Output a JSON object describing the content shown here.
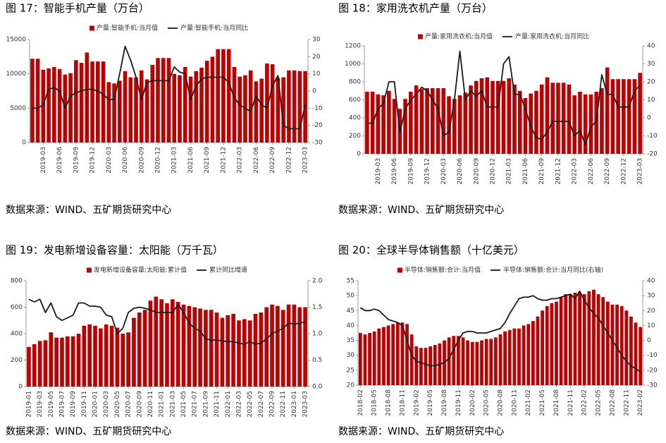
{
  "chart_data": [
    {
      "type": "combo",
      "title": "图 17：智能手机产量（万台）",
      "source": "数据来源：WIND、五矿期货研究中心",
      "categories": [
        null,
        null,
        "2019-03",
        null,
        null,
        "2019-06",
        null,
        null,
        "2019-09",
        null,
        null,
        "2019-12",
        null,
        null,
        "2020-03",
        null,
        null,
        "2020-06",
        null,
        null,
        "2020-09",
        null,
        null,
        "2020-12",
        null,
        null,
        "2021-03",
        null,
        null,
        "2021-06",
        null,
        null,
        "2021-09",
        null,
        null,
        "2021-12",
        null,
        null,
        "2022-03",
        null,
        null,
        "2022-06",
        null,
        null,
        "2022-09",
        null,
        null,
        "2022-12",
        null,
        null,
        "2023-03"
      ],
      "series": [
        {
          "name": "产量:智能手机:当月值",
          "type": "bar",
          "color": "#c00000",
          "values": [
            12200,
            12200,
            10600,
            10800,
            11000,
            10700,
            9900,
            10100,
            12000,
            11600,
            13100,
            11800,
            11800,
            11800,
            8800,
            8600,
            9000,
            10400,
            9500,
            9500,
            10500,
            9200,
            11300,
            12300,
            12300,
            12300,
            10000,
            9800,
            11000,
            9600,
            10400,
            10900,
            11900,
            12500,
            13600,
            13600,
            13600,
            11000,
            9600,
            9800,
            10500,
            8900,
            9300,
            11500,
            11400,
            9400,
            9500,
            10500,
            10500,
            10400,
            10400
          ]
        },
        {
          "name": "产量:智能手机:当月同比",
          "type": "line",
          "axis": "y2",
          "color": "#1a1a1a",
          "values": [
            -10,
            -10,
            -8,
            1,
            2,
            0,
            -10,
            -3,
            -1,
            0,
            1,
            1,
            0,
            -2,
            -5,
            -5,
            10,
            26,
            18,
            8,
            -5,
            5,
            6,
            6,
            6,
            6,
            14,
            11,
            10,
            -5,
            3,
            7,
            8,
            8,
            8,
            8,
            5,
            -4,
            -8,
            -10,
            -12,
            -3,
            -8,
            -10,
            3,
            9,
            -20,
            -22,
            -22,
            -22,
            -8
          ]
        }
      ],
      "ylim": [
        0,
        15000
      ],
      "yticks": [
        0,
        5000,
        10000,
        15000
      ],
      "y2lim": [
        -30,
        30
      ],
      "y2ticks": [
        -30,
        -20,
        -10,
        0,
        10,
        20,
        30
      ]
    },
    {
      "type": "combo",
      "title": "图 18：家用洗衣机产量（万台）",
      "source": "数据来源：WIND、五矿期货研究中心",
      "categories": [
        null,
        null,
        "2019-03",
        null,
        null,
        "2019-06",
        null,
        null,
        "2019-09",
        null,
        null,
        "2019-12",
        null,
        null,
        "2020-03",
        null,
        null,
        "2020-06",
        null,
        null,
        "2020-09",
        null,
        null,
        "2020-12",
        null,
        null,
        "2021-03",
        null,
        null,
        "2021-06",
        null,
        null,
        "2021-09",
        null,
        null,
        "2021-12",
        null,
        null,
        "2022-03",
        null,
        null,
        "2022-06",
        null,
        null,
        "2022-09",
        null,
        null,
        "2022-12",
        null,
        null,
        "2023-03"
      ],
      "series": [
        {
          "name": "产量:家用洗衣机:当月值",
          "type": "bar",
          "color": "#c00000",
          "values": [
            690,
            690,
            660,
            650,
            700,
            610,
            500,
            610,
            690,
            760,
            720,
            730,
            730,
            730,
            730,
            640,
            610,
            650,
            680,
            760,
            810,
            840,
            850,
            810,
            810,
            810,
            840,
            770,
            700,
            620,
            670,
            700,
            770,
            850,
            790,
            790,
            790,
            770,
            650,
            690,
            660,
            660,
            690,
            730,
            960,
            830,
            830,
            830,
            830,
            830,
            900
          ]
        },
        {
          "name": "产量:家用洗衣机:当月同比",
          "type": "line",
          "axis": "y2",
          "color": "#1a1a1a",
          "values": [
            -3,
            -3,
            5,
            8,
            20,
            20,
            -8,
            5,
            10,
            13,
            17,
            15,
            10,
            5,
            -10,
            -8,
            10,
            37,
            10,
            15,
            12,
            15,
            6,
            6,
            6,
            30,
            34,
            13,
            13,
            5,
            -5,
            -11,
            -12,
            -8,
            -2,
            -2,
            -2,
            -2,
            -10,
            -7,
            -15,
            -5,
            -2,
            24,
            13,
            13,
            6,
            6,
            6,
            15,
            18
          ]
        }
      ],
      "ylim": [
        0,
        1200
      ],
      "yticks": [
        0,
        200,
        400,
        600,
        800,
        1000,
        1200
      ],
      "y2lim": [
        -20,
        40
      ],
      "y2ticks": [
        -20,
        -10,
        0,
        10,
        20,
        30,
        40
      ]
    },
    {
      "type": "combo",
      "title": "图 19：发电新增设备容量：太阳能（万千瓦）",
      "source": "数据来源：WIND、五矿期货研究中心",
      "categories": [
        "2019-01",
        null,
        "2019-03",
        null,
        "2019-05",
        null,
        "2019-07",
        null,
        "2019-09",
        null,
        "2019-11",
        null,
        "2020-01",
        null,
        "2020-03",
        null,
        "2020-05",
        null,
        "2020-07",
        null,
        "2020-09",
        null,
        "2020-11",
        null,
        "2021-01",
        null,
        "2021-03",
        null,
        "2021-05",
        null,
        "2021-07",
        null,
        "2021-09",
        null,
        "2021-11",
        null,
        "2022-01",
        null,
        "2022-03",
        null,
        "2022-05",
        null,
        "2022-07",
        null,
        "2022-09",
        null,
        "2022-11",
        null,
        "2023-01",
        null,
        "2023-03"
      ],
      "series": [
        {
          "name": "发电新增设备容量:太阳能:累计值",
          "type": "bar",
          "color": "#c00000",
          "values": [
            300,
            320,
            345,
            350,
            410,
            370,
            370,
            380,
            380,
            400,
            460,
            470,
            460,
            440,
            470,
            460,
            445,
            400,
            410,
            520,
            560,
            580,
            650,
            680,
            660,
            630,
            660,
            640,
            620,
            610,
            600,
            590,
            580,
            580,
            560,
            520,
            540,
            550,
            500,
            510,
            500,
            550,
            560,
            600,
            620,
            610,
            580,
            620,
            620,
            600,
            600
          ]
        },
        {
          "name": "累计同比增速",
          "type": "line",
          "axis": "y2",
          "color": "#1a1a1a",
          "values": [
            1.65,
            1.6,
            1.65,
            1.4,
            1.58,
            1.32,
            1.25,
            1.3,
            1.35,
            1.58,
            1.58,
            1.52,
            1.52,
            1.5,
            1.35,
            1.32,
            1.0,
            1.1,
            1.4,
            1.48,
            1.5,
            1.48,
            1.45,
            1.4,
            1.4,
            1.4,
            1.4,
            1.55,
            1.4,
            1.2,
            1.1,
            1.05,
            0.9,
            0.88,
            0.88,
            0.86,
            0.85,
            0.85,
            0.82,
            0.8,
            0.85,
            0.8,
            0.82,
            0.9,
            1.0,
            1.05,
            1.1,
            1.2,
            1.18,
            1.2,
            1.22
          ]
        }
      ],
      "ylim": [
        0,
        800
      ],
      "yticks": [
        0,
        200,
        400,
        600,
        800
      ],
      "y2lim": [
        0,
        2
      ],
      "y2ticks": [
        {
          "value": 0,
          "label": "0.0"
        },
        {
          "value": 0.5,
          "label": "0.5"
        },
        {
          "value": 1,
          "label": "1.0"
        },
        {
          "value": 1.5,
          "label": "1.5"
        },
        {
          "value": 2,
          "label": "2.0"
        }
      ]
    },
    {
      "type": "combo",
      "title": "图 20：全球半导体销售额（十亿美元）",
      "source": "数据来源：WIND、五矿期货研究中心",
      "categories": [
        "2018-02",
        null,
        null,
        "2018-05",
        null,
        null,
        "2018-08",
        null,
        null,
        "2018-11",
        null,
        null,
        "2019-02",
        null,
        null,
        "2019-05",
        null,
        null,
        "2019-08",
        null,
        null,
        "2019-11",
        null,
        null,
        "2020-02",
        null,
        null,
        "2020-05",
        null,
        null,
        "2020-08",
        null,
        null,
        "2020-11",
        null,
        null,
        "2021-02",
        null,
        null,
        "2021-05",
        null,
        null,
        "2021-08",
        null,
        null,
        "2021-11",
        null,
        null,
        "2022-02",
        null,
        null,
        "2022-05",
        null,
        null,
        "2022-08",
        null,
        null,
        "2022-11",
        null,
        null,
        "2023-02"
      ],
      "series": [
        {
          "name": "半导体:销售额:合计:当月值",
          "type": "bar",
          "color": "#c00000",
          "values": [
            37.5,
            37,
            37.5,
            38,
            39,
            39.5,
            40,
            40.5,
            41,
            41,
            40.5,
            37,
            33,
            32.5,
            32.5,
            33,
            33.5,
            34,
            35,
            36,
            36.5,
            36.5,
            36,
            35,
            34.5,
            34.5,
            35,
            35.5,
            35.5,
            36,
            37,
            38,
            38.5,
            39,
            39,
            40,
            40.5,
            41.5,
            43,
            45,
            46.5,
            47.5,
            48,
            49.5,
            50.5,
            50.5,
            51,
            51,
            50.5,
            51.5,
            52,
            50.5,
            49.5,
            48,
            47,
            47,
            46.5,
            45,
            43,
            41,
            39.5
          ]
        },
        {
          "name": "半导体:销售额:合计:当月同比(右轴)",
          "type": "line",
          "axis": "y2",
          "color": "#1a1a1a",
          "values": [
            22,
            20,
            20,
            21,
            20,
            17,
            14,
            13,
            12,
            10,
            0,
            -10,
            -14,
            -15,
            -16,
            -17,
            -17,
            -16,
            -15,
            -12,
            -6,
            0,
            5,
            6,
            6,
            5,
            5,
            5,
            6,
            7,
            8,
            12,
            18,
            23,
            28,
            29,
            29,
            30,
            28,
            27,
            27,
            28,
            28,
            29,
            30,
            31,
            28,
            33,
            27,
            22,
            18,
            15,
            10,
            5,
            0,
            -5,
            -10,
            -14,
            -17,
            -19,
            -21
          ]
        }
      ],
      "ylim": [
        20,
        55
      ],
      "yticks": [
        20,
        25,
        30,
        35,
        40,
        45,
        50,
        55
      ],
      "y2lim": [
        -30,
        40
      ],
      "y2ticks": [
        -30,
        -20,
        -10,
        0,
        10,
        20,
        30,
        40
      ]
    }
  ]
}
